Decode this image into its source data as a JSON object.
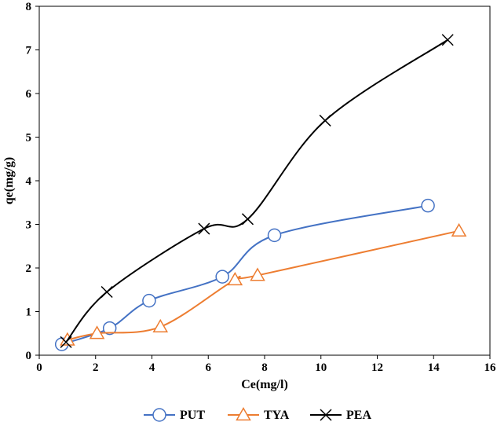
{
  "chart_data": {
    "type": "scatter",
    "title": "",
    "xlabel": "Ce(mg/l)",
    "ylabel": "qe(mg/g)",
    "xlim": [
      0,
      16
    ],
    "ylim": [
      0,
      8
    ],
    "x_ticks": [
      "0",
      "2",
      "4",
      "6",
      "8",
      "10",
      "12",
      "14",
      "16"
    ],
    "y_ticks": [
      "0",
      "1",
      "2",
      "3",
      "4",
      "5",
      "6",
      "7",
      "8"
    ],
    "grid": false,
    "legend_position": "bottom",
    "smooth_lines": true,
    "series": [
      {
        "name": "PUT",
        "color": "#4472C4",
        "marker": "circle",
        "x": [
          0.8,
          2.5,
          3.9,
          6.5,
          8.35,
          13.8
        ],
        "y": [
          0.25,
          0.62,
          1.25,
          1.8,
          2.75,
          3.43
        ]
      },
      {
        "name": "TYA",
        "color": "#ED7D31",
        "marker": "triangle",
        "x": [
          1.0,
          2.05,
          4.3,
          6.95,
          7.75,
          14.9
        ],
        "y": [
          0.35,
          0.5,
          0.65,
          1.73,
          1.83,
          2.85
        ]
      },
      {
        "name": "PEA",
        "color": "#000000",
        "marker": "x",
        "x": [
          0.95,
          2.4,
          5.85,
          7.4,
          10.15,
          14.5
        ],
        "y": [
          0.3,
          1.45,
          2.9,
          3.12,
          5.38,
          7.23
        ]
      }
    ]
  }
}
